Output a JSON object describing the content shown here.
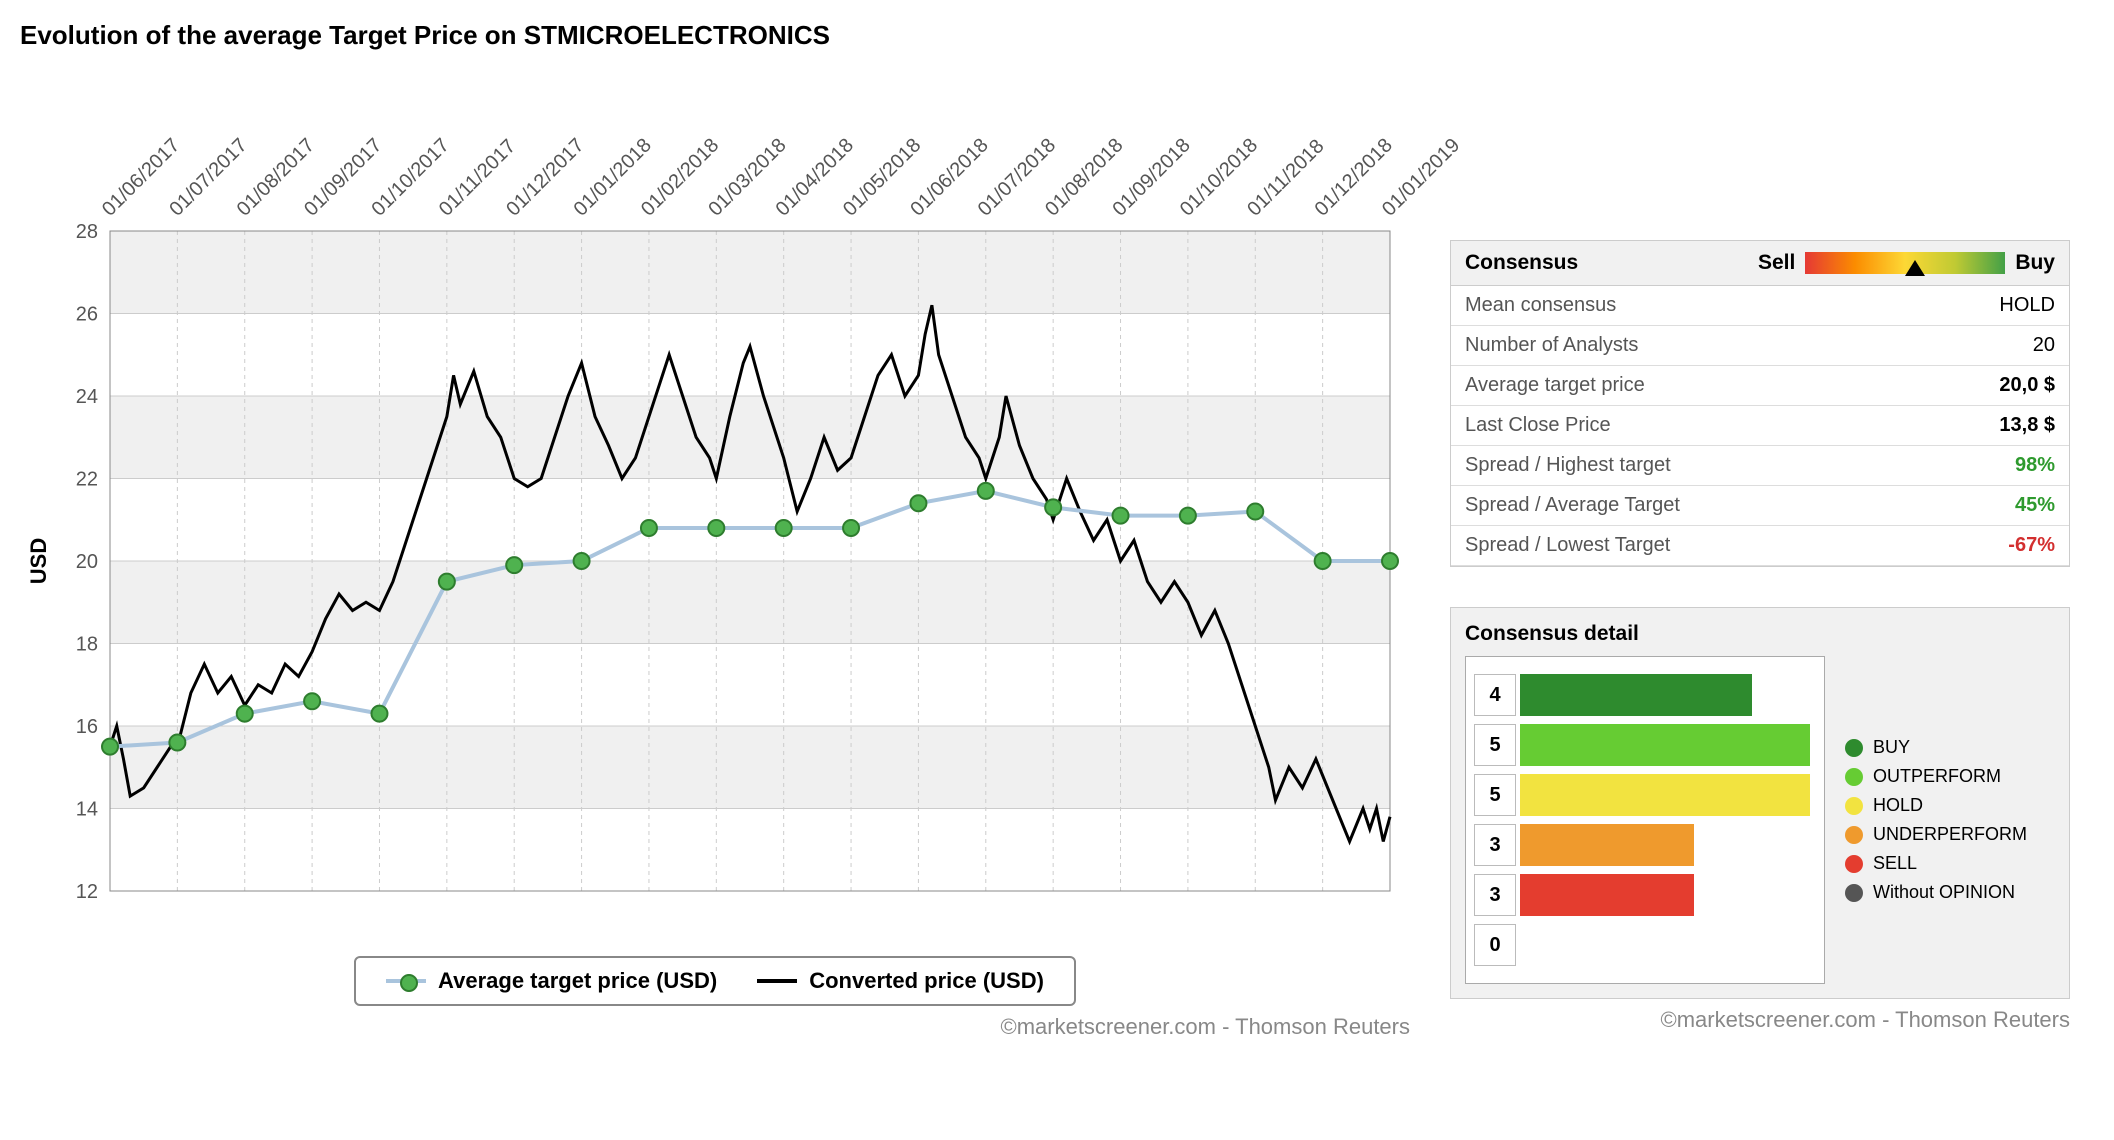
{
  "chart": {
    "title": "Evolution of the average Target Price on STMICROELECTRONICS",
    "type": "line",
    "ylabel": "USD",
    "ylim": [
      12,
      28
    ],
    "ytick_step": 2,
    "yticks": [
      12,
      14,
      16,
      18,
      20,
      22,
      24,
      26,
      28
    ],
    "xlabels": [
      "01/06/2017",
      "01/07/2017",
      "01/08/2017",
      "01/09/2017",
      "01/10/2017",
      "01/11/2017",
      "01/12/2017",
      "01/01/2018",
      "01/02/2018",
      "01/03/2018",
      "01/04/2018",
      "01/05/2018",
      "01/06/2018",
      "01/07/2018",
      "01/08/2018",
      "01/09/2018",
      "01/10/2018",
      "01/11/2018",
      "01/12/2018",
      "01/01/2019"
    ],
    "x_rotation_deg": -45,
    "grid_color": "#cccccc",
    "grid_dash": "4,4",
    "band_color": "#f0f0f0",
    "background_color": "#ffffff",
    "axis_fontsize": 20,
    "label_fontsize": 22,
    "series": {
      "avg_target": {
        "label": "Average target price (USD)",
        "line_color": "#a9c4dd",
        "line_width": 4,
        "marker_color": "#4fb24f",
        "marker_border": "#2e7d2e",
        "marker_size": 8,
        "marker_style": "circle",
        "points": [
          [
            0,
            15.5
          ],
          [
            1,
            15.6
          ],
          [
            2,
            16.3
          ],
          [
            3,
            16.6
          ],
          [
            4,
            16.3
          ],
          [
            5,
            19.5
          ],
          [
            6,
            19.9
          ],
          [
            7,
            20.0
          ],
          [
            8,
            20.8
          ],
          [
            9,
            20.8
          ],
          [
            10,
            20.8
          ],
          [
            11,
            20.8
          ],
          [
            12,
            21.4
          ],
          [
            13,
            21.7
          ],
          [
            14,
            21.3
          ],
          [
            15,
            21.1
          ],
          [
            16,
            21.1
          ],
          [
            17,
            21.2
          ],
          [
            18,
            20.0
          ],
          [
            19,
            20.0
          ]
        ]
      },
      "converted_price": {
        "label": "Converted price (USD)",
        "line_color": "#000000",
        "line_width": 3,
        "points": [
          [
            0,
            15.5
          ],
          [
            0.1,
            16.0
          ],
          [
            0.2,
            15.2
          ],
          [
            0.3,
            14.3
          ],
          [
            0.5,
            14.5
          ],
          [
            0.7,
            15.0
          ],
          [
            0.9,
            15.5
          ],
          [
            1.0,
            15.5
          ],
          [
            1.2,
            16.8
          ],
          [
            1.4,
            17.5
          ],
          [
            1.6,
            16.8
          ],
          [
            1.8,
            17.2
          ],
          [
            2.0,
            16.5
          ],
          [
            2.2,
            17.0
          ],
          [
            2.4,
            16.8
          ],
          [
            2.6,
            17.5
          ],
          [
            2.8,
            17.2
          ],
          [
            3.0,
            17.8
          ],
          [
            3.2,
            18.6
          ],
          [
            3.4,
            19.2
          ],
          [
            3.6,
            18.8
          ],
          [
            3.8,
            19.0
          ],
          [
            4.0,
            18.8
          ],
          [
            4.2,
            19.5
          ],
          [
            4.4,
            20.5
          ],
          [
            4.6,
            21.5
          ],
          [
            4.8,
            22.5
          ],
          [
            5.0,
            23.5
          ],
          [
            5.1,
            24.5
          ],
          [
            5.2,
            23.8
          ],
          [
            5.4,
            24.6
          ],
          [
            5.6,
            23.5
          ],
          [
            5.8,
            23.0
          ],
          [
            6.0,
            22.0
          ],
          [
            6.2,
            21.8
          ],
          [
            6.4,
            22.0
          ],
          [
            6.6,
            23.0
          ],
          [
            6.8,
            24.0
          ],
          [
            7.0,
            24.8
          ],
          [
            7.2,
            23.5
          ],
          [
            7.4,
            22.8
          ],
          [
            7.6,
            22.0
          ],
          [
            7.8,
            22.5
          ],
          [
            8.0,
            23.5
          ],
          [
            8.2,
            24.5
          ],
          [
            8.3,
            25.0
          ],
          [
            8.5,
            24.0
          ],
          [
            8.7,
            23.0
          ],
          [
            8.9,
            22.5
          ],
          [
            9.0,
            22.0
          ],
          [
            9.2,
            23.5
          ],
          [
            9.4,
            24.8
          ],
          [
            9.5,
            25.2
          ],
          [
            9.7,
            24.0
          ],
          [
            9.9,
            23.0
          ],
          [
            10.0,
            22.5
          ],
          [
            10.2,
            21.2
          ],
          [
            10.4,
            22.0
          ],
          [
            10.6,
            23.0
          ],
          [
            10.8,
            22.2
          ],
          [
            11.0,
            22.5
          ],
          [
            11.2,
            23.5
          ],
          [
            11.4,
            24.5
          ],
          [
            11.6,
            25.0
          ],
          [
            11.8,
            24.0
          ],
          [
            12.0,
            24.5
          ],
          [
            12.1,
            25.5
          ],
          [
            12.2,
            26.2
          ],
          [
            12.3,
            25.0
          ],
          [
            12.5,
            24.0
          ],
          [
            12.7,
            23.0
          ],
          [
            12.9,
            22.5
          ],
          [
            13.0,
            22.0
          ],
          [
            13.2,
            23.0
          ],
          [
            13.3,
            24.0
          ],
          [
            13.5,
            22.8
          ],
          [
            13.7,
            22.0
          ],
          [
            13.9,
            21.5
          ],
          [
            14.0,
            21.0
          ],
          [
            14.2,
            22.0
          ],
          [
            14.4,
            21.2
          ],
          [
            14.6,
            20.5
          ],
          [
            14.8,
            21.0
          ],
          [
            15.0,
            20.0
          ],
          [
            15.2,
            20.5
          ],
          [
            15.4,
            19.5
          ],
          [
            15.6,
            19.0
          ],
          [
            15.8,
            19.5
          ],
          [
            16.0,
            19.0
          ],
          [
            16.2,
            18.2
          ],
          [
            16.4,
            18.8
          ],
          [
            16.6,
            18.0
          ],
          [
            16.8,
            17.0
          ],
          [
            17.0,
            16.0
          ],
          [
            17.2,
            15.0
          ],
          [
            17.3,
            14.2
          ],
          [
            17.5,
            15.0
          ],
          [
            17.7,
            14.5
          ],
          [
            17.9,
            15.2
          ],
          [
            18.0,
            14.8
          ],
          [
            18.2,
            14.0
          ],
          [
            18.4,
            13.2
          ],
          [
            18.6,
            14.0
          ],
          [
            18.7,
            13.5
          ],
          [
            18.8,
            14.0
          ],
          [
            18.9,
            13.2
          ],
          [
            19.0,
            13.8
          ]
        ]
      }
    },
    "legend": {
      "items": [
        "Average target price (USD)",
        "Converted price (USD)"
      ],
      "position": "bottom-center",
      "border_color": "#888888"
    },
    "attribution": "©marketscreener.com - Thomson Reuters"
  },
  "consensus": {
    "header_label": "Consensus",
    "sell_label": "Sell",
    "buy_label": "Buy",
    "pointer_pct": 55,
    "gradient": [
      "#e53935",
      "#fb8c00",
      "#fdd835",
      "#c0ca33",
      "#43a047"
    ],
    "rows": [
      {
        "label": "Mean consensus",
        "value": "HOLD",
        "style": "plain"
      },
      {
        "label": "Number of Analysts",
        "value": "20",
        "style": "plain"
      },
      {
        "label": "Average target price",
        "value": "20,0 $",
        "style": "bold"
      },
      {
        "label": "Last Close Price",
        "value": "13,8 $",
        "style": "bold"
      },
      {
        "label": "Spread / Highest target",
        "value": "98%",
        "style": "green"
      },
      {
        "label": "Spread / Average Target",
        "value": "45%",
        "style": "green"
      },
      {
        "label": "Spread / Lowest Target",
        "value": "-67%",
        "style": "red"
      }
    ]
  },
  "consensus_detail": {
    "title": "Consensus detail",
    "max": 5,
    "bars": [
      {
        "label": "BUY",
        "count": 4,
        "color": "#2e8b2e"
      },
      {
        "label": "OUTPERFORM",
        "count": 5,
        "color": "#66cc33"
      },
      {
        "label": "HOLD",
        "count": 5,
        "color": "#f2e340"
      },
      {
        "label": "UNDERPERFORM",
        "count": 3,
        "color": "#ef9a2d"
      },
      {
        "label": "SELL",
        "count": 3,
        "color": "#e43d2f"
      },
      {
        "label": "Without OPINION",
        "count": 0,
        "color": "#555555"
      }
    ],
    "attribution": "©marketscreener.com - Thomson Reuters"
  }
}
